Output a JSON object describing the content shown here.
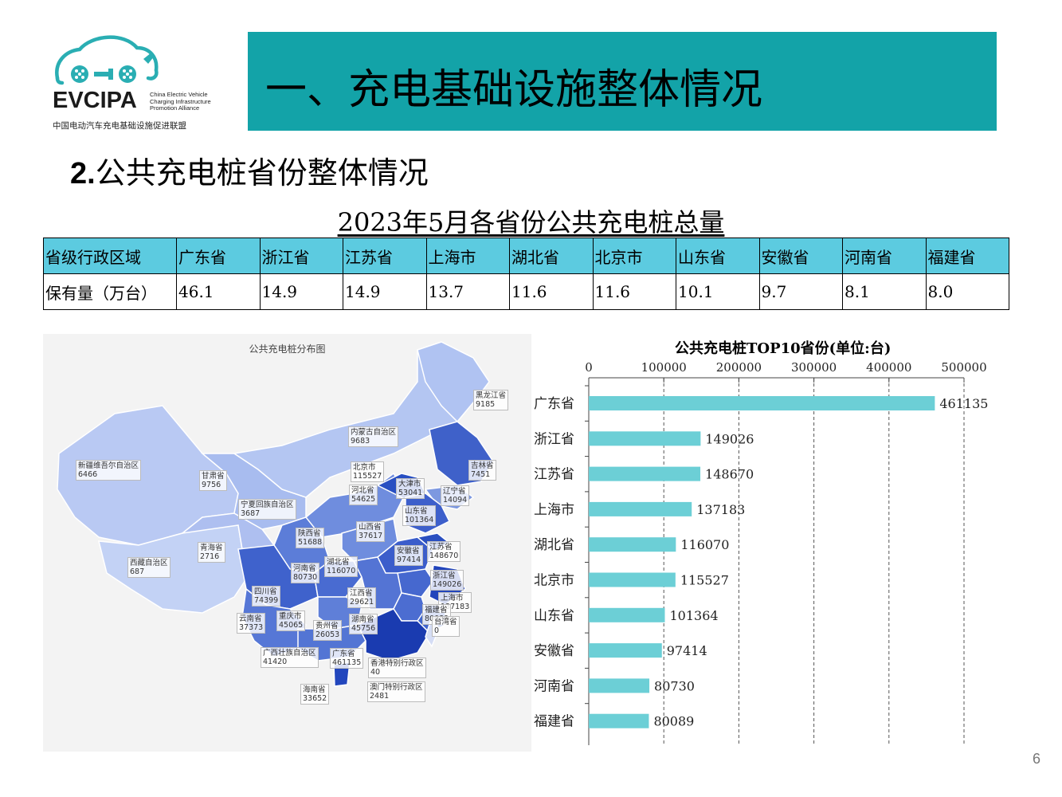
{
  "logo": {
    "wordmark": "EVCIPA",
    "english_lines": [
      "China Electric Vehicle",
      "Charging Infrastructure",
      "Promotion Alliance"
    ],
    "chinese": "中国电动汽车充电基础设施促进联盟"
  },
  "slide_title": "一、充电基础设施整体情况",
  "subtitle_num": "2.",
  "subtitle_text": "公共充电桩省份整体情况",
  "table_title": "2023年5月各省份公共充电桩总量",
  "table": {
    "row_headers": [
      "省级行政区域",
      "保有量（万台）"
    ],
    "provinces": [
      "广东省",
      "浙江省",
      "江苏省",
      "上海市",
      "湖北省",
      "北京市",
      "山东省",
      "安徽省",
      "河南省",
      "福建省"
    ],
    "values": [
      "46.1",
      "14.9",
      "14.9",
      "13.7",
      "11.6",
      "11.6",
      "10.1",
      "9.7",
      "8.1",
      "8.0"
    ]
  },
  "map": {
    "title": "公共充电桩分布图",
    "labels": [
      {
        "name": "黑龙江省",
        "value": "9185"
      },
      {
        "name": "内蒙古自治区",
        "value": "9683"
      },
      {
        "name": "吉林省",
        "value": "7451"
      },
      {
        "name": "新疆维吾尔自治区",
        "value": "6466"
      },
      {
        "name": "甘肃省",
        "value": "9756"
      },
      {
        "name": "北京市",
        "value": "115527"
      },
      {
        "name": "河北省",
        "value": "54625"
      },
      {
        "name": "大津市",
        "value": "53041"
      },
      {
        "name": "辽宁省",
        "value": "14094"
      },
      {
        "name": "宁夏回族自治区",
        "value": "3687"
      },
      {
        "name": "山东省",
        "value": "101364"
      },
      {
        "name": "陕西省",
        "value": "51688"
      },
      {
        "name": "山西省",
        "value": "37617"
      },
      {
        "name": "青海省",
        "value": "2716"
      },
      {
        "name": "江苏省",
        "value": "148670"
      },
      {
        "name": "安徽省",
        "value": "97414"
      },
      {
        "name": "西藏自治区",
        "value": "687"
      },
      {
        "name": "河南省",
        "value": "80730"
      },
      {
        "name": "湖北省",
        "value": "116070"
      },
      {
        "name": "浙江省",
        "value": "149026"
      },
      {
        "name": "四川省",
        "value": "74399"
      },
      {
        "name": "上海市",
        "value": "137183"
      },
      {
        "name": "江西省",
        "value": "29621"
      },
      {
        "name": "福建省",
        "value": "80089"
      },
      {
        "name": "云南省",
        "value": "37373"
      },
      {
        "name": "重庆市",
        "value": "45065"
      },
      {
        "name": "贵州省",
        "value": "26053"
      },
      {
        "name": "湖南省",
        "value": "45756"
      },
      {
        "name": "台湾省",
        "value": "0"
      },
      {
        "name": "广西壮族自治区",
        "value": "41420"
      },
      {
        "name": "广东省",
        "value": "461135"
      },
      {
        "name": "香港特别行政区",
        "value": "40"
      },
      {
        "name": "澳门特别行政区",
        "value": "2481"
      },
      {
        "name": "海南省",
        "value": "33652"
      }
    ]
  },
  "chart_data": {
    "type": "bar",
    "orientation": "horizontal",
    "title": "公共充电桩TOP10省份(单位:台)",
    "categories": [
      "广东省",
      "浙江省",
      "江苏省",
      "上海市",
      "湖北省",
      "北京市",
      "山东省",
      "安徽省",
      "河南省",
      "福建省"
    ],
    "values": [
      461135,
      149026,
      148670,
      137183,
      116070,
      115527,
      101364,
      97414,
      80730,
      80089
    ],
    "xlim": [
      0,
      500000
    ],
    "xticks": [
      "0",
      "100000",
      "200000",
      "300000",
      "400000",
      "500000"
    ],
    "axis_position": "top",
    "grid": "vertical dashed",
    "bar_color": "#6ccfd6"
  },
  "page_number": "6",
  "colors": {
    "title_bar": "#13a3a8",
    "table_header": "#5ccbe0",
    "logo_teal": "#2aaeb3"
  }
}
